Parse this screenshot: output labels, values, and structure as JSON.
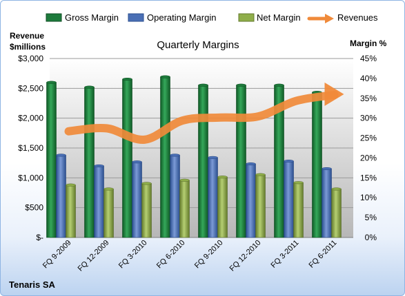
{
  "chart_data": {
    "type": "bar",
    "title": "Quarterly Margins",
    "company": "Tenaris SA",
    "y_left_label_line1": "Revenue",
    "y_left_label_line2": "$millions",
    "y_right_label": "Margin %",
    "categories": [
      "FQ 9-2009",
      "FQ 12-2009",
      "FQ 3-2010",
      "FQ 6-2010",
      "FQ 9-2010",
      "FQ 12-2010",
      "FQ 3-2011",
      "FQ 6-2011"
    ],
    "y_left_ticks": [
      "$-",
      "$500",
      "$1,000",
      "$1,500",
      "$2,000",
      "$2,500",
      "$3,000"
    ],
    "y_right_ticks": [
      "0%",
      "5%",
      "10%",
      "15%",
      "20%",
      "25%",
      "30%",
      "35%",
      "40%",
      "45%"
    ],
    "ylim_left": [
      0,
      3000
    ],
    "ylim_right": [
      0,
      45
    ],
    "legend_position": "top",
    "series": [
      {
        "name": "Gross Margin",
        "axis": "right",
        "color": "#1e7b3c",
        "values": [
          39.0,
          37.8,
          39.8,
          40.4,
          38.3,
          38.3,
          38.3,
          36.5
        ]
      },
      {
        "name": "Operating Margin",
        "axis": "right",
        "color": "#4a6fb5",
        "values": [
          20.7,
          18.0,
          19.0,
          20.7,
          20.1,
          18.5,
          19.2,
          17.3
        ]
      },
      {
        "name": "Net Margin",
        "axis": "right",
        "color": "#8fae4a",
        "values": [
          13.2,
          12.2,
          13.6,
          14.4,
          15.2,
          15.8,
          13.8,
          12.2
        ]
      },
      {
        "name": "Revenues",
        "axis": "left",
        "color": "#f08a3a",
        "values": [
          1780,
          1830,
          1640,
          1960,
          2010,
          2030,
          2290,
          2390
        ]
      }
    ]
  }
}
